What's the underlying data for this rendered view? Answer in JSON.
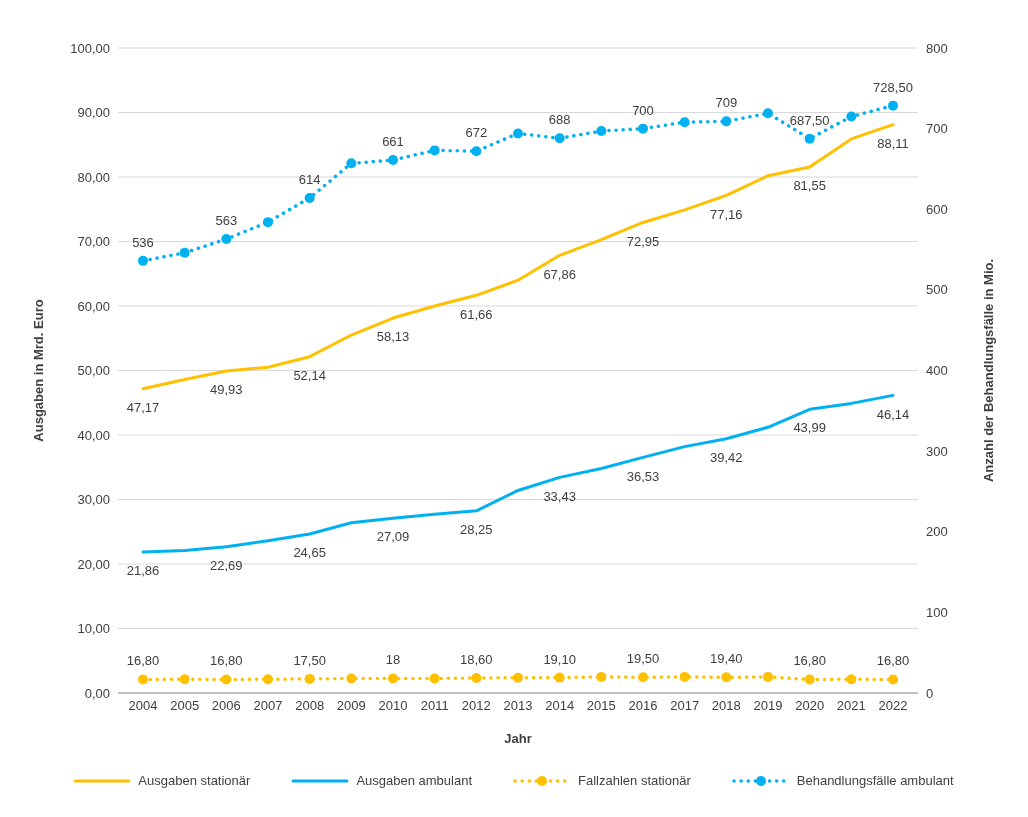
{
  "chart_data": {
    "type": "line",
    "xlabel": "Jahr",
    "ylabel": "Ausgaben in Mrd. Euro",
    "y2label": "Anzahl der Behandlungsfälle in Mio.",
    "categories": [
      "2004",
      "2005",
      "2006",
      "2007",
      "2008",
      "2009",
      "2010",
      "2011",
      "2012",
      "2013",
      "2014",
      "2015",
      "2016",
      "2017",
      "2018",
      "2019",
      "2020",
      "2021",
      "2022"
    ],
    "series": [
      {
        "name": "Ausgaben stationär",
        "color": "#ffc000",
        "line_style": "solid",
        "marker": "none",
        "values": [
          47.17,
          48.6,
          49.93,
          50.5,
          52.14,
          55.5,
          58.13,
          60.0,
          61.66,
          64.0,
          67.86,
          70.3,
          72.95,
          74.9,
          77.16,
          80.2,
          81.55,
          85.9,
          88.11
        ],
        "value_labels": [
          "47,17",
          null,
          "49,93",
          null,
          "52,14",
          null,
          "58,13",
          null,
          "61,66",
          null,
          "67,86",
          null,
          "72,95",
          null,
          "77,16",
          null,
          "81,55",
          null,
          "88,11"
        ]
      },
      {
        "name": "Ausgaben ambulant",
        "color": "#00b0f0",
        "line_style": "solid",
        "marker": "none",
        "values": [
          21.86,
          22.1,
          22.69,
          23.6,
          24.65,
          26.4,
          27.09,
          27.7,
          28.25,
          31.4,
          33.43,
          34.8,
          36.53,
          38.2,
          39.42,
          41.2,
          43.99,
          44.9,
          46.14
        ],
        "value_labels": [
          "21,86",
          null,
          "22,69",
          null,
          "24,65",
          null,
          "27,09",
          null,
          "28,25",
          null,
          "33,43",
          null,
          "36,53",
          null,
          "39,42",
          null,
          "43,99",
          null,
          "46,14"
        ]
      },
      {
        "name": "Fallzahlen stationär",
        "color": "#ffc000",
        "axis": "y2",
        "line_style": "dotted",
        "marker": "circle",
        "values": [
          16.8,
          17,
          16.8,
          17,
          17.5,
          18,
          18,
          18,
          18.6,
          19,
          19.1,
          20,
          19.5,
          20,
          19.4,
          20,
          16.8,
          17,
          16.8
        ],
        "value_labels": [
          "16,80",
          null,
          "16,80",
          null,
          "17,50",
          null,
          "18",
          null,
          "18,60",
          null,
          "19,10",
          null,
          "19,50",
          null,
          "19,40",
          null,
          "16,80",
          null,
          "16,80"
        ]
      },
      {
        "name": "Behandlungsfälle ambulant",
        "color": "#00b0f0",
        "axis": "y2",
        "line_style": "dotted",
        "marker": "circle",
        "values": [
          536,
          546,
          563,
          584,
          614,
          657,
          661,
          673,
          672,
          694,
          688,
          697,
          700,
          708,
          709,
          719,
          687.5,
          715,
          728.5
        ],
        "value_labels": [
          "536",
          null,
          "563",
          null,
          "614",
          null,
          "661",
          null,
          "672",
          null,
          "688",
          null,
          "700",
          null,
          "709",
          null,
          "687,50",
          null,
          "728,50"
        ]
      }
    ],
    "ylim": [
      0,
      100
    ],
    "yticks": [
      {
        "value": 0,
        "label": "0,00"
      },
      {
        "value": 10,
        "label": "10,00"
      },
      {
        "value": 20,
        "label": "20,00"
      },
      {
        "value": 30,
        "label": "30,00"
      },
      {
        "value": 40,
        "label": "40,00"
      },
      {
        "value": 50,
        "label": "50,00"
      },
      {
        "value": 60,
        "label": "60,00"
      },
      {
        "value": 70,
        "label": "70,00"
      },
      {
        "value": 80,
        "label": "80,00"
      },
      {
        "value": 90,
        "label": "90,00"
      },
      {
        "value": 100,
        "label": "100,00"
      }
    ],
    "y2lim": [
      0,
      800
    ],
    "y2ticks": [
      0,
      100,
      200,
      300,
      400,
      500,
      600,
      700,
      800
    ],
    "grid": "y",
    "legend": "bottom"
  }
}
